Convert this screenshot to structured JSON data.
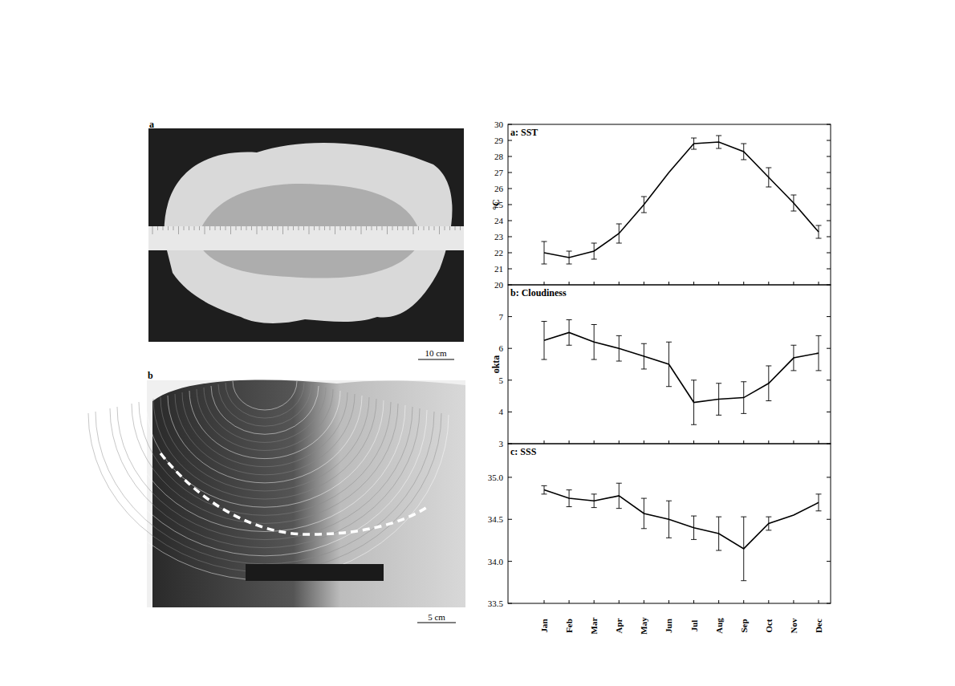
{
  "photos": [
    {
      "label": "a",
      "scale_bar": "10 cm"
    },
    {
      "label": "b",
      "scale_bar": "5 cm"
    }
  ],
  "chart_data": [
    {
      "type": "line",
      "title": "a: SST",
      "y_label": "°C",
      "categories": [
        "Jan",
        "Feb",
        "Mar",
        "Apr",
        "May",
        "Jun",
        "Jul",
        "Aug",
        "Sep",
        "Oct",
        "Nov",
        "Dec"
      ],
      "values": [
        22.0,
        21.7,
        22.1,
        23.2,
        25.0,
        27.0,
        28.8,
        28.9,
        28.3,
        26.7,
        25.1,
        23.3
      ],
      "errors": [
        0.7,
        0.4,
        0.5,
        0.6,
        0.5,
        null,
        0.35,
        0.4,
        0.5,
        0.6,
        0.5,
        0.4
      ],
      "ylim": [
        20,
        30
      ],
      "yticks": [
        20,
        21,
        22,
        23,
        24,
        25,
        26,
        27,
        28,
        29,
        30
      ],
      "tick_labels": "y",
      "color": "#000000"
    },
    {
      "type": "line",
      "title": "b: Cloudiness",
      "y_label": "okta",
      "categories": [
        "Jan",
        "Feb",
        "Mar",
        "Apr",
        "May",
        "Jun",
        "Jul",
        "Aug",
        "Sep",
        "Oct",
        "Nov",
        "Dec"
      ],
      "values": [
        6.25,
        6.5,
        6.2,
        6.0,
        5.75,
        5.5,
        4.3,
        4.4,
        4.45,
        4.9,
        5.7,
        5.85
      ],
      "errors": [
        0.6,
        0.4,
        0.55,
        0.4,
        0.4,
        0.7,
        0.7,
        0.5,
        0.5,
        0.55,
        0.4,
        0.55
      ],
      "ylim": [
        3,
        8
      ],
      "yticks": [
        3,
        4,
        5,
        6,
        7
      ],
      "tick_labels": "y",
      "color": "#000000"
    },
    {
      "type": "line",
      "title": "c: SSS",
      "categories": [
        "Jan",
        "Feb",
        "Mar",
        "Apr",
        "May",
        "Jun",
        "Jul",
        "Aug",
        "Sep",
        "Oct",
        "Nov",
        "Dec"
      ],
      "values": [
        34.85,
        34.75,
        34.72,
        34.78,
        34.57,
        34.5,
        34.4,
        34.33,
        34.15,
        34.45,
        34.55,
        34.7
      ],
      "errors": [
        0.05,
        0.1,
        0.08,
        0.15,
        0.18,
        0.22,
        0.14,
        0.2,
        0.38,
        0.08,
        null,
        0.1
      ],
      "ylim": [
        33.5,
        35.4
      ],
      "yticks": [
        {
          "value": 33.5,
          "label": "33.5"
        },
        {
          "value": 34.0,
          "label": "34.0"
        },
        {
          "value": 34.5,
          "label": "34.5"
        },
        {
          "value": 35.0,
          "label": "35.0"
        }
      ],
      "color": "#000000"
    }
  ]
}
